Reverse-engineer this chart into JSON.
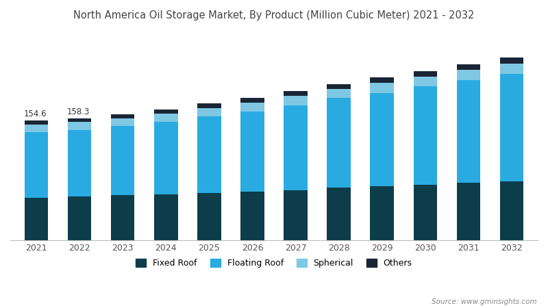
{
  "title": "North America Oil Storage Market, By Product (Million Cubic Meter) 2021 - 2032",
  "years": [
    2021,
    2022,
    2023,
    2024,
    2025,
    2026,
    2027,
    2028,
    2029,
    2030,
    2031,
    2032
  ],
  "fixed_roof": [
    55,
    57,
    58,
    59,
    61,
    63,
    65,
    68,
    70,
    72,
    74,
    76
  ],
  "floating_roof": [
    85,
    86,
    90,
    94,
    99,
    104,
    110,
    116,
    121,
    127,
    133,
    139
  ],
  "spherical": [
    10,
    10,
    10,
    11,
    11,
    11,
    12,
    12,
    13,
    13,
    14,
    14
  ],
  "others": [
    5,
    5,
    5,
    5,
    6,
    6,
    6,
    6,
    7,
    7,
    7,
    8
  ],
  "annotations": [
    {
      "year": 2021,
      "value": "154.6"
    },
    {
      "year": 2022,
      "value": "158.3"
    }
  ],
  "colors": {
    "fixed_roof": "#0d3d4a",
    "floating_roof": "#29abe2",
    "spherical": "#7ec8e3",
    "others": "#1a2535"
  },
  "legend_labels": [
    "Fixed Roof",
    "Floating Roof",
    "Spherical",
    "Others"
  ],
  "source_text": "Source: www.gminsights.com",
  "background_color": "#ffffff",
  "title_color": "#444444",
  "bar_width": 0.55,
  "ylim_max": 270
}
